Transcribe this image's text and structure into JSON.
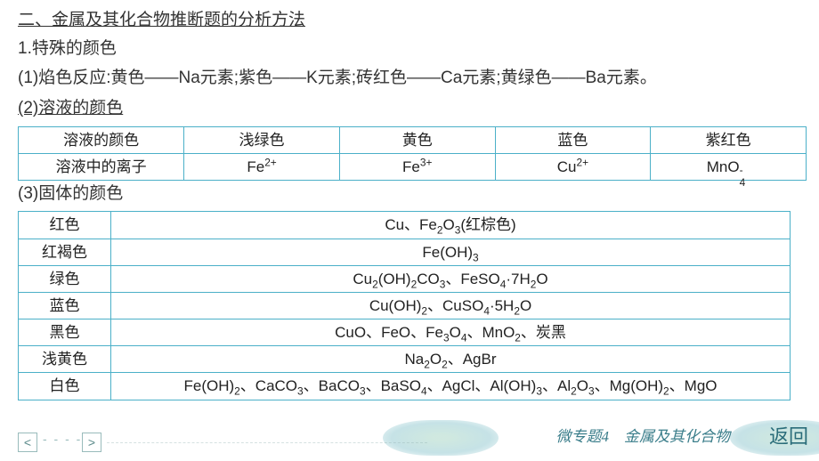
{
  "colors": {
    "table_border": "#4bb0c8",
    "text": "#333333",
    "footer_accent": "#3a7d8a",
    "petal_inner": "#c4e3d8",
    "petal_outer": "#b7dbe0"
  },
  "section_title": "二、金属及其化合物推断题的分析方法",
  "sub1": "1.特殊的颜色",
  "flame_line": "(1)焰色反应:黄色——Na元素;紫色——K元素;砖红色——Ca元素;黄绿色——Ba元素。",
  "sub_solution": "(2)溶液的颜色",
  "table1": {
    "rows": [
      [
        "溶液的颜色",
        "浅绿色",
        "黄色",
        "蓝色",
        "紫红色"
      ],
      [
        "溶液中的离子",
        "Fe2+",
        "Fe3+",
        "Cu2+",
        "MnO4-"
      ]
    ]
  },
  "sub_solid": "(3)固体的颜色",
  "table2": {
    "rows": [
      [
        "红色",
        "Cu、Fe2O3(红棕色)"
      ],
      [
        "红褐色",
        "Fe(OH)3"
      ],
      [
        "绿色",
        "Cu2(OH)2CO3、FeSO4·7H2O"
      ],
      [
        "蓝色",
        "Cu(OH)2、CuSO4·5H2O"
      ],
      [
        "黑色",
        "CuO、FeO、Fe3O4、MnO2、炭黑"
      ],
      [
        "浅黄色",
        "Na2O2、AgBr"
      ],
      [
        "白色",
        "Fe(OH)2、CaCO3、BaCO3、BaSO4、AgCl、Al(OH)3、Al2O3、Mg(OH)2、MgO"
      ]
    ]
  },
  "nav": {
    "prev": "<",
    "next": ">",
    "dots": "- - - -"
  },
  "page_tag": "微专题4　金属及其化合物",
  "back_label": "返回"
}
